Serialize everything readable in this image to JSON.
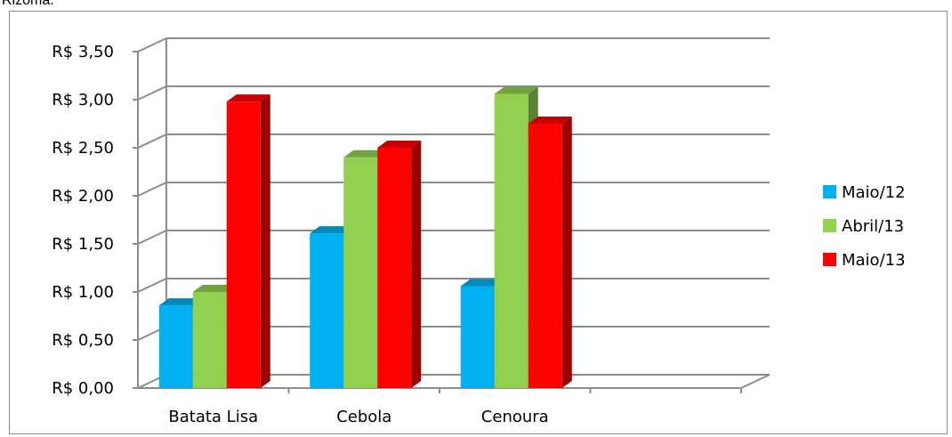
{
  "caption": "Rizoma:",
  "chart_data": {
    "type": "bar",
    "variant": "3d-clustered-column",
    "categories": [
      "Batata Lisa",
      "Cebola",
      "Cenoura"
    ],
    "series": [
      {
        "name": "Maio/12",
        "values": [
          0.86,
          1.61,
          1.06
        ],
        "color": "#00b0f0"
      },
      {
        "name": "Abril/13",
        "values": [
          1.0,
          2.4,
          3.06
        ],
        "color": "#92d050"
      },
      {
        "name": "Maio/13",
        "values": [
          2.98,
          2.5,
          2.75
        ],
        "color": "#ff0000"
      }
    ],
    "ylim": [
      0,
      3.5
    ],
    "yticks": [
      "R$ 0,00",
      "R$ 0,50",
      "R$ 1,00",
      "R$ 1,50",
      "R$ 2,00",
      "R$ 2,50",
      "R$ 3,00",
      "R$ 3,50"
    ],
    "ytick_step": 0.5,
    "grid": true,
    "legend_position": "right"
  }
}
